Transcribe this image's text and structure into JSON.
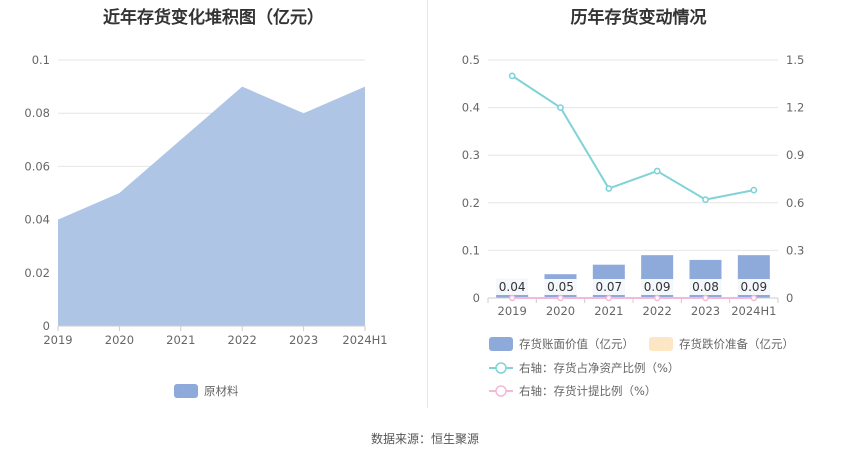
{
  "left_title": "近年存货变化堆积图（亿元）",
  "right_title": "历年存货变动情况",
  "source": "数据来源：恒生聚源",
  "colors": {
    "area": "#aec5e6",
    "area_legend": "#8eaadb",
    "bar": "#8eaadb",
    "line_ratio": "#7fd3d8",
    "line_provision": "#f4b8d8",
    "reserve_legend": "#fde6c4",
    "grid": "#e6e6e6",
    "axis": "#cccccc"
  },
  "chart_data": [
    {
      "type": "area",
      "title": "近年存货变化堆积图（亿元）",
      "categories": [
        "2019",
        "2020",
        "2021",
        "2022",
        "2023",
        "2024H1"
      ],
      "series": [
        {
          "name": "原材料",
          "values": [
            0.04,
            0.05,
            0.07,
            0.09,
            0.08,
            0.09
          ]
        }
      ],
      "ylim": [
        0,
        0.1
      ],
      "yticks": [
        "0",
        "0.02",
        "0.04",
        "0.06",
        "0.08",
        "0.1"
      ],
      "legend": "bottom",
      "grid": true
    },
    {
      "type": "bar",
      "title": "历年存货变动情况",
      "categories": [
        "2019",
        "2020",
        "2021",
        "2022",
        "2023",
        "2024H1"
      ],
      "series": [
        {
          "name": "存货账面价值（亿元）",
          "type": "bar",
          "axis": "left",
          "values": [
            0.04,
            0.05,
            0.07,
            0.09,
            0.08,
            0.09
          ],
          "labels": [
            "0.04",
            "0.05",
            "0.07",
            "0.09",
            "0.08",
            "0.09"
          ]
        },
        {
          "name": "存货跌价准备（亿元）",
          "type": "bar",
          "axis": "left",
          "values": [
            0,
            0,
            0,
            0,
            0,
            0
          ]
        },
        {
          "name": "右轴：存货占净资产比例（%）",
          "type": "line",
          "axis": "right",
          "values": [
            1.4,
            1.2,
            0.69,
            0.8,
            0.62,
            0.68
          ]
        },
        {
          "name": "右轴：存货计提比例（%）",
          "type": "line",
          "axis": "right",
          "values": [
            0,
            0,
            0,
            0,
            0,
            0
          ]
        }
      ],
      "ylim_left": [
        0,
        0.5
      ],
      "ylim_right": [
        0,
        1.5
      ],
      "yticks_left": [
        "0",
        "0.1",
        "0.2",
        "0.3",
        "0.4",
        "0.5"
      ],
      "yticks_right": [
        "0",
        "0.3",
        "0.6",
        "0.9",
        "1.2",
        "1.5"
      ],
      "legend": "bottom",
      "grid": true
    }
  ]
}
